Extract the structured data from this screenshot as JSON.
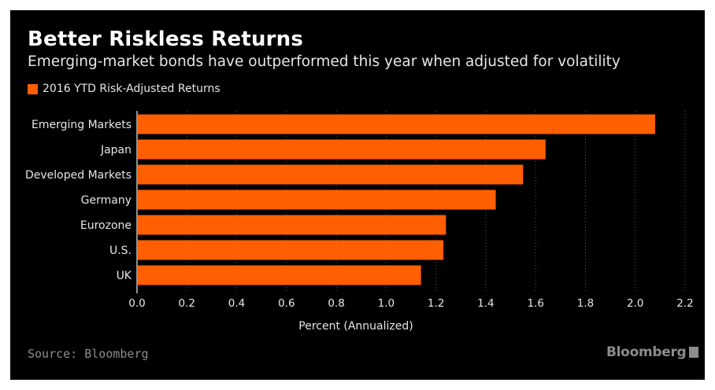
{
  "header": {
    "title": "Better Riskless Returns",
    "subtitle": "Emerging-market bonds have outperformed this year when adjusted for volatility"
  },
  "footer": {
    "source": "Source: Bloomberg",
    "logo_text": "Bloomberg"
  },
  "colors": {
    "background": "#000000",
    "bar": "#ff5f00",
    "text": "#e6e6e6",
    "muted": "#8c8c8c",
    "grid": "#555555"
  },
  "chart_data": {
    "type": "bar",
    "orientation": "horizontal",
    "categories": [
      "Emerging Markets",
      "Japan",
      "Developed Markets",
      "Germany",
      "Eurozone",
      "U.S.",
      "UK"
    ],
    "series": [
      {
        "name": "2016 YTD Risk-Adjusted Returns",
        "values": [
          2.08,
          1.64,
          1.55,
          1.44,
          1.24,
          1.23,
          1.14
        ]
      }
    ],
    "xlabel": "Percent (Annualized)",
    "ylabel": "",
    "xlim": [
      0,
      2.2
    ],
    "xticks": [
      "0.0",
      "0.2",
      "0.4",
      "0.6",
      "0.8",
      "1.0",
      "1.2",
      "1.4",
      "1.6",
      "1.8",
      "2.0",
      "2.2"
    ],
    "grid": "vertical dotted",
    "legend": "top-left"
  }
}
